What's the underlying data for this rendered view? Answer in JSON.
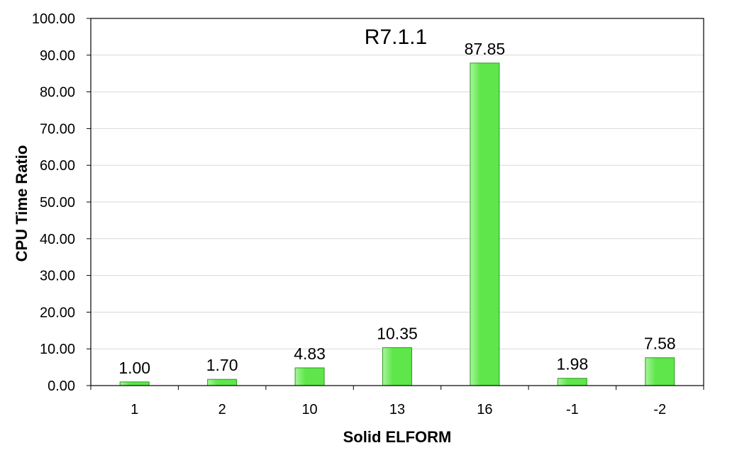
{
  "chart_data": {
    "type": "bar",
    "title": "R7.1.1",
    "xlabel": "Solid ELFORM",
    "ylabel": "CPU Time Ratio",
    "categories": [
      "1",
      "2",
      "10",
      "13",
      "16",
      "-1",
      "-2"
    ],
    "values": [
      1.0,
      1.7,
      4.83,
      10.35,
      87.85,
      1.98,
      7.58
    ],
    "value_labels": [
      "1.00",
      "1.70",
      "4.83",
      "10.35",
      "87.85",
      "1.98",
      "7.58"
    ],
    "ylim": [
      0,
      100
    ],
    "yticks": [
      "0.00",
      "10.00",
      "20.00",
      "30.00",
      "40.00",
      "50.00",
      "60.00",
      "70.00",
      "80.00",
      "90.00",
      "100.00"
    ],
    "grid": true,
    "legend": "none",
    "colors": {
      "bar_fill": "#5ee64a",
      "bar_highlight": "#a8f59c",
      "bar_edge": "#2f9a24",
      "grid": "#d9d9d9",
      "axis": "#000000",
      "frame": "#000000"
    }
  }
}
